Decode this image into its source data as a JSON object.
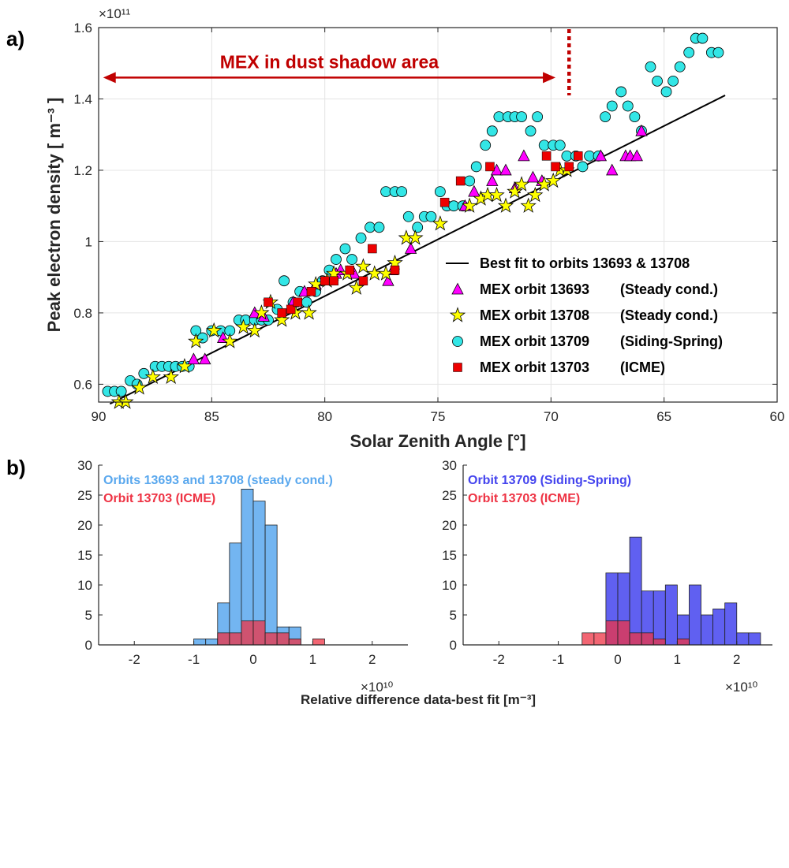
{
  "panel_a_label": "a)",
  "panel_b_label": "b)",
  "chart_data": [
    {
      "type": "scatter",
      "xlabel": "Solar Zenith Angle [°]",
      "ylabel": "Peak electron density [ m⁻³ ]",
      "y_multiplier": "×10¹¹",
      "xlim": [
        90,
        60
      ],
      "ylim": [
        0.55,
        1.6
      ],
      "x_reversed": true,
      "x_ticks": [
        "90",
        "85",
        "80",
        "75",
        "70",
        "65",
        "60"
      ],
      "y_ticks": [
        "0.6",
        "0.8",
        "1",
        "1.2",
        "1.4",
        "1.6"
      ],
      "grid": true,
      "legend_position": "bottom-right",
      "annotation": {
        "text": "MEX in dust shadow area",
        "arrow_from_x": 89.8,
        "arrow_to_x": 69.8,
        "arrow_y": 1.46,
        "dotted_line_x": 69.2,
        "color": "#c00000"
      },
      "fit_line": {
        "name": "Best fit to orbits 13693 & 13708",
        "x": [
          89.5,
          62.3
        ],
        "y": [
          0.545,
          1.41
        ],
        "color": "#000000"
      },
      "series": [
        {
          "name": "MEX orbit 13693",
          "suffix": "(Steady cond.)",
          "marker": "triangle",
          "color": "#ff00ff",
          "x": [
            85.8,
            85.3,
            84.5,
            83.1,
            82.7,
            81.4,
            80.9,
            80.4,
            79.5,
            79.3,
            78.7,
            77.2,
            77.0,
            76.2,
            73.8,
            73.4,
            72.6,
            72.4,
            72.0,
            71.6,
            71.2,
            70.8,
            70.4,
            67.8,
            67.3,
            66.7,
            66.5,
            66.2,
            66.0
          ],
          "y": [
            0.67,
            0.67,
            0.73,
            0.8,
            0.79,
            0.83,
            0.86,
            0.88,
            0.91,
            0.92,
            0.91,
            0.89,
            0.92,
            0.98,
            1.1,
            1.14,
            1.17,
            1.2,
            1.2,
            1.15,
            1.24,
            1.18,
            1.17,
            1.24,
            1.2,
            1.24,
            1.24,
            1.24,
            1.31
          ]
        },
        {
          "name": "MEX orbit 13708",
          "suffix": "(Steady cond.)",
          "marker": "star",
          "color": "#ffff00",
          "x": [
            89.1,
            88.8,
            88.2,
            87.6,
            86.8,
            86.2,
            85.7,
            84.9,
            84.2,
            83.6,
            83.1,
            82.8,
            82.4,
            81.9,
            81.3,
            80.7,
            80.4,
            79.9,
            79.6,
            79.0,
            78.6,
            78.3,
            77.8,
            77.3,
            76.9,
            76.4,
            76.0,
            74.9,
            73.6,
            73.1,
            72.8,
            72.4,
            72.0,
            71.6,
            71.3,
            71.0,
            70.7,
            70.3,
            69.9,
            69.6,
            69.3
          ],
          "y": [
            0.55,
            0.55,
            0.59,
            0.62,
            0.62,
            0.65,
            0.72,
            0.75,
            0.72,
            0.76,
            0.75,
            0.8,
            0.83,
            0.78,
            0.8,
            0.8,
            0.88,
            0.89,
            0.91,
            0.91,
            0.87,
            0.93,
            0.91,
            0.91,
            0.94,
            1.01,
            1.01,
            1.05,
            1.1,
            1.12,
            1.13,
            1.13,
            1.1,
            1.14,
            1.16,
            1.1,
            1.13,
            1.16,
            1.17,
            1.2,
            1.2
          ]
        },
        {
          "name": "MEX orbit 13709",
          "suffix": "(Siding-Spring)",
          "marker": "circle",
          "color": "#33e6e6",
          "x": [
            89.6,
            89.3,
            89.0,
            88.6,
            88.3,
            88.0,
            87.5,
            87.2,
            86.9,
            86.6,
            86.3,
            86.0,
            85.7,
            85.4,
            85.0,
            84.6,
            84.2,
            83.8,
            83.5,
            83.1,
            82.8,
            82.5,
            82.1,
            81.8,
            81.4,
            81.1,
            80.8,
            80.4,
            80.1,
            79.8,
            79.5,
            79.1,
            78.8,
            78.4,
            78.0,
            77.6,
            77.3,
            76.9,
            76.6,
            76.3,
            75.9,
            75.6,
            75.3,
            74.9,
            74.6,
            74.3,
            73.9,
            73.6,
            73.3,
            72.9,
            72.6,
            72.3,
            71.9,
            71.6,
            71.3,
            70.9,
            70.6,
            70.3,
            69.9,
            69.6,
            69.3,
            68.9,
            68.6,
            68.3,
            67.9,
            67.6,
            67.3,
            66.9,
            66.6,
            66.3,
            66.0,
            65.6,
            65.3,
            64.9,
            64.6,
            64.3,
            63.9,
            63.6,
            63.3,
            62.9,
            62.6
          ],
          "y": [
            0.58,
            0.58,
            0.58,
            0.61,
            0.6,
            0.63,
            0.65,
            0.65,
            0.65,
            0.65,
            0.65,
            0.65,
            0.75,
            0.73,
            0.75,
            0.75,
            0.75,
            0.78,
            0.78,
            0.78,
            0.78,
            0.78,
            0.81,
            0.89,
            0.83,
            0.86,
            0.83,
            0.86,
            0.89,
            0.92,
            0.95,
            0.98,
            0.95,
            1.01,
            1.04,
            1.04,
            1.14,
            1.14,
            1.14,
            1.07,
            1.04,
            1.07,
            1.07,
            1.14,
            1.1,
            1.1,
            1.1,
            1.17,
            1.21,
            1.27,
            1.31,
            1.35,
            1.35,
            1.35,
            1.35,
            1.31,
            1.35,
            1.27,
            1.27,
            1.27,
            1.24,
            1.24,
            1.21,
            1.24,
            1.24,
            1.35,
            1.38,
            1.42,
            1.38,
            1.35,
            1.31,
            1.49,
            1.45,
            1.42,
            1.45,
            1.49,
            1.53,
            1.57,
            1.57,
            1.53,
            1.53
          ]
        },
        {
          "name": "MEX orbit 13703",
          "suffix": "(ICME)",
          "marker": "square",
          "color": "#ee0000",
          "x": [
            82.5,
            81.9,
            81.5,
            81.2,
            80.6,
            80.0,
            79.6,
            78.9,
            78.3,
            77.9,
            76.9,
            74.7,
            74.0,
            72.7,
            70.2,
            69.8,
            69.2,
            68.8
          ],
          "y": [
            0.83,
            0.8,
            0.81,
            0.83,
            0.86,
            0.89,
            0.89,
            0.92,
            0.89,
            0.98,
            0.92,
            1.11,
            1.17,
            1.21,
            1.24,
            1.21,
            1.21,
            1.24
          ]
        }
      ]
    },
    {
      "type": "bar",
      "subtype": "histogram",
      "xlim": [
        -2.6,
        2.6
      ],
      "ylim": [
        0,
        30
      ],
      "x_ticks": [
        "-2",
        "-1",
        "0",
        "1",
        "2"
      ],
      "y_ticks": [
        "0",
        "5",
        "10",
        "15",
        "20",
        "25",
        "30"
      ],
      "x_multiplier": "×10¹⁰",
      "bin_width": 0.2,
      "series": [
        {
          "name": "Orbits 13693 and 13708 (steady cond.)",
          "color": "#5aa8ee",
          "bin_starts": [
            -1.0,
            -0.8,
            -0.6,
            -0.4,
            -0.2,
            0.0,
            0.2,
            0.4,
            0.6
          ],
          "counts": [
            1,
            1,
            7,
            17,
            26,
            24,
            20,
            3,
            3
          ]
        },
        {
          "name": "Orbit 13703 (ICME)",
          "color": "#ee3344",
          "bin_starts": [
            -0.6,
            -0.4,
            -0.2,
            0.0,
            0.2,
            0.4,
            0.6,
            1.0
          ],
          "counts": [
            2,
            2,
            4,
            4,
            2,
            2,
            1,
            1
          ]
        }
      ]
    },
    {
      "type": "bar",
      "subtype": "histogram",
      "xlim": [
        -2.6,
        2.6
      ],
      "ylim": [
        0,
        30
      ],
      "x_ticks": [
        "-2",
        "-1",
        "0",
        "1",
        "2"
      ],
      "y_ticks": [
        "0",
        "5",
        "10",
        "15",
        "20",
        "25",
        "30"
      ],
      "x_multiplier": "×10¹⁰",
      "bin_width": 0.2,
      "series": [
        {
          "name": "Orbit 13709 (Siding-Spring)",
          "color": "#4444ee",
          "bin_starts": [
            -0.2,
            0.0,
            0.2,
            0.4,
            0.6,
            0.8,
            1.0,
            1.2,
            1.4,
            1.6,
            1.8,
            2.0,
            2.2
          ],
          "counts": [
            12,
            12,
            18,
            9,
            9,
            10,
            5,
            10,
            5,
            6,
            7,
            2,
            2
          ]
        },
        {
          "name": "Orbit 13703 (ICME)",
          "color": "#ee3344",
          "bin_starts": [
            -0.6,
            -0.4,
            -0.2,
            0.0,
            0.2,
            0.4,
            0.6,
            1.0
          ],
          "counts": [
            2,
            2,
            4,
            4,
            2,
            2,
            1,
            1
          ]
        }
      ]
    }
  ],
  "shared_xlabel": "Relative difference data-best fit   [m⁻³]"
}
